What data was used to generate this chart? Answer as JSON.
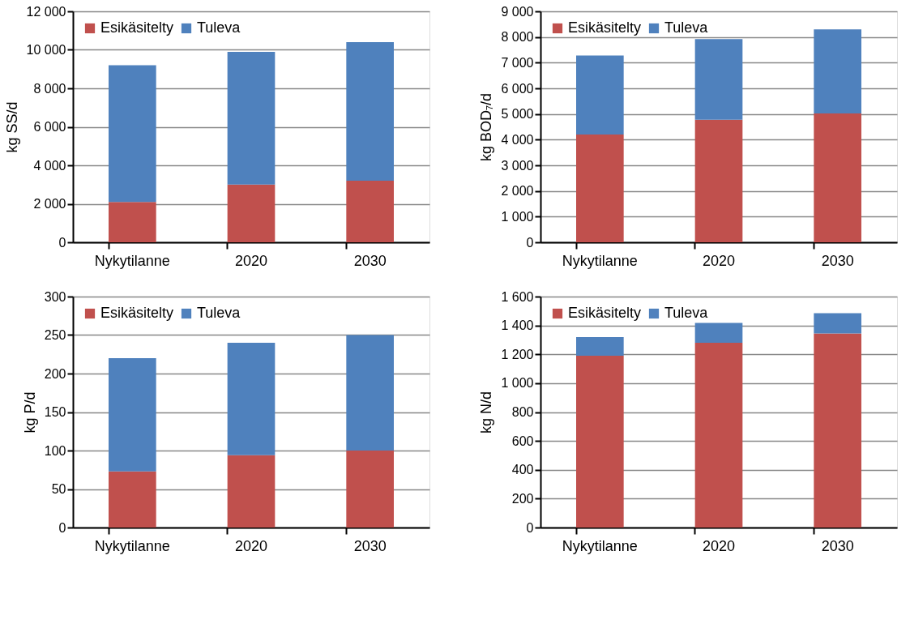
{
  "chart_data": [
    {
      "type": "bar",
      "stacked": true,
      "ylabel": "kg SS/d",
      "categories": [
        "Nykytilanne",
        "2020",
        "2030"
      ],
      "legend": "top left",
      "grid": "y",
      "ylim": [
        0,
        12000
      ],
      "yticks": [
        0,
        {
          "value": 2000,
          "label": "2 000"
        },
        {
          "value": 4000,
          "label": "4 000"
        },
        {
          "value": 6000,
          "label": "6 000"
        },
        {
          "value": 8000,
          "label": "8 000"
        },
        {
          "value": 10000,
          "label": "10 000"
        },
        {
          "value": 12000,
          "label": "12 000"
        }
      ],
      "series": [
        {
          "name": "Esikäsitelty",
          "color": "#c0504d",
          "values": [
            2100,
            3000,
            3200
          ]
        },
        {
          "name": "Tuleva",
          "color": "#4f81bd",
          "values": [
            7100,
            6900,
            7200
          ]
        }
      ]
    },
    {
      "type": "bar",
      "stacked": true,
      "ylabel": "kg BOD₇/d",
      "categories": [
        "Nykytilanne",
        "2020",
        "2030"
      ],
      "legend": "top left",
      "grid": "y",
      "ylim": [
        0,
        9000
      ],
      "yticks": [
        0,
        {
          "value": 1000,
          "label": "1 000"
        },
        {
          "value": 2000,
          "label": "2 000"
        },
        {
          "value": 3000,
          "label": "3 000"
        },
        {
          "value": 4000,
          "label": "4 000"
        },
        {
          "value": 5000,
          "label": "5 000"
        },
        {
          "value": 6000,
          "label": "6 000"
        },
        {
          "value": 7000,
          "label": "7 000"
        },
        {
          "value": 8000,
          "label": "8 000"
        },
        {
          "value": 9000,
          "label": "9 000"
        }
      ],
      "series": [
        {
          "name": "Esikäsitelty",
          "color": "#c0504d",
          "values": [
            4200,
            4780,
            5020
          ]
        },
        {
          "name": "Tuleva",
          "color": "#4f81bd",
          "values": [
            3080,
            3140,
            3280
          ]
        }
      ]
    },
    {
      "type": "bar",
      "stacked": true,
      "ylabel": "kg P/d",
      "categories": [
        "Nykytilanne",
        "2020",
        "2030"
      ],
      "legend": "top left",
      "grid": "y",
      "ylim": [
        0,
        300
      ],
      "yticks": [
        0,
        50,
        100,
        150,
        200,
        250,
        300
      ],
      "series": [
        {
          "name": "Esikäsitelty",
          "color": "#c0504d",
          "values": [
            73,
            94,
            100
          ]
        },
        {
          "name": "Tuleva",
          "color": "#4f81bd",
          "values": [
            147,
            146,
            150
          ]
        }
      ]
    },
    {
      "type": "bar",
      "stacked": true,
      "ylabel": "kg N/d",
      "categories": [
        "Nykytilanne",
        "2020",
        "2030"
      ],
      "legend": "top left",
      "grid": "y",
      "ylim": [
        0,
        1600
      ],
      "yticks": [
        0,
        200,
        400,
        600,
        800,
        {
          "value": 1000,
          "label": "1 000"
        },
        {
          "value": 1200,
          "label": "1 200"
        },
        {
          "value": 1400,
          "label": "1 400"
        },
        {
          "value": 1600,
          "label": "1 600"
        }
      ],
      "series": [
        {
          "name": "Esikäsitelty",
          "color": "#c0504d",
          "values": [
            1190,
            1280,
            1345
          ]
        },
        {
          "name": "Tuleva",
          "color": "#4f81bd",
          "values": [
            130,
            138,
            140
          ]
        }
      ]
    }
  ]
}
